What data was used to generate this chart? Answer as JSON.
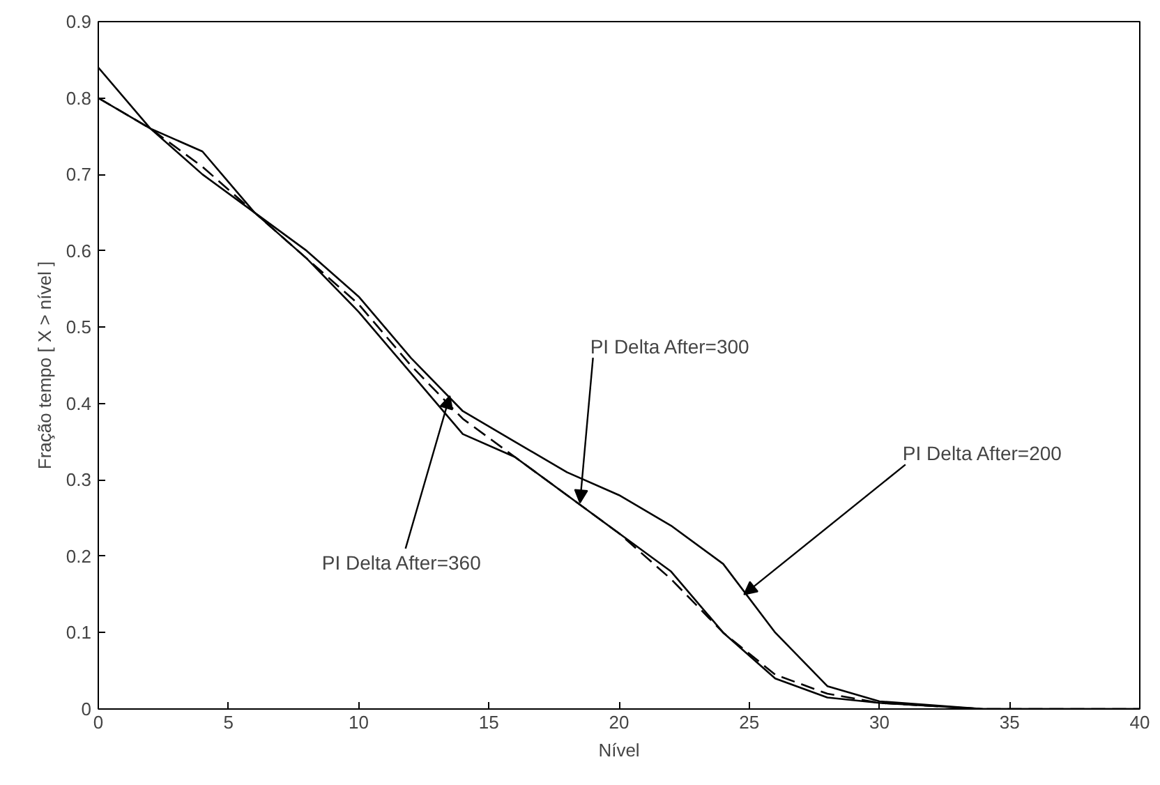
{
  "chart_data": {
    "type": "line",
    "xlabel": "Nível",
    "ylabel": "Fração tempo [ X > nível ]",
    "x": [
      0,
      2,
      4,
      6,
      8,
      10,
      12,
      14,
      16,
      18,
      20,
      22,
      24,
      26,
      28,
      30,
      34,
      40
    ],
    "series": [
      {
        "color": "#000000",
        "line_style": "solid",
        "values": [
          0.8,
          0.76,
          0.73,
          0.65,
          0.6,
          0.54,
          0.46,
          0.39,
          0.35,
          0.31,
          0.28,
          0.24,
          0.19,
          0.1,
          0.03,
          0.01,
          0.0,
          0.0
        ]
      },
      {
        "color": "#000000",
        "line_style": "dashed",
        "values": [
          0.8,
          0.76,
          0.71,
          0.65,
          0.59,
          0.53,
          0.45,
          0.38,
          0.33,
          0.28,
          0.23,
          0.17,
          0.1,
          0.045,
          0.02,
          0.008,
          0.0,
          0.0
        ]
      },
      {
        "color": "#000000",
        "line_style": "solid",
        "values": [
          0.84,
          0.76,
          0.7,
          0.65,
          0.59,
          0.52,
          0.44,
          0.36,
          0.33,
          0.28,
          0.23,
          0.18,
          0.1,
          0.04,
          0.015,
          0.008,
          0.0,
          0.0
        ]
      }
    ],
    "annotations": [
      {
        "text": "PI Delta After=300",
        "x": 18.5,
        "y": 0.27
      },
      {
        "text": "PI Delta After=200",
        "x": 24.8,
        "y": 0.15
      },
      {
        "text": "PI Delta After=360",
        "x": 13.5,
        "y": 0.41
      }
    ],
    "xlim": [
      0,
      40
    ],
    "ylim": [
      0,
      0.9
    ],
    "xticks": [
      0,
      5,
      10,
      15,
      20,
      25,
      30,
      35,
      40
    ],
    "yticks": [
      0,
      0.1,
      0.2,
      0.3,
      0.4,
      0.5,
      0.6,
      0.7,
      0.8,
      0.9
    ],
    "grid": false
  }
}
